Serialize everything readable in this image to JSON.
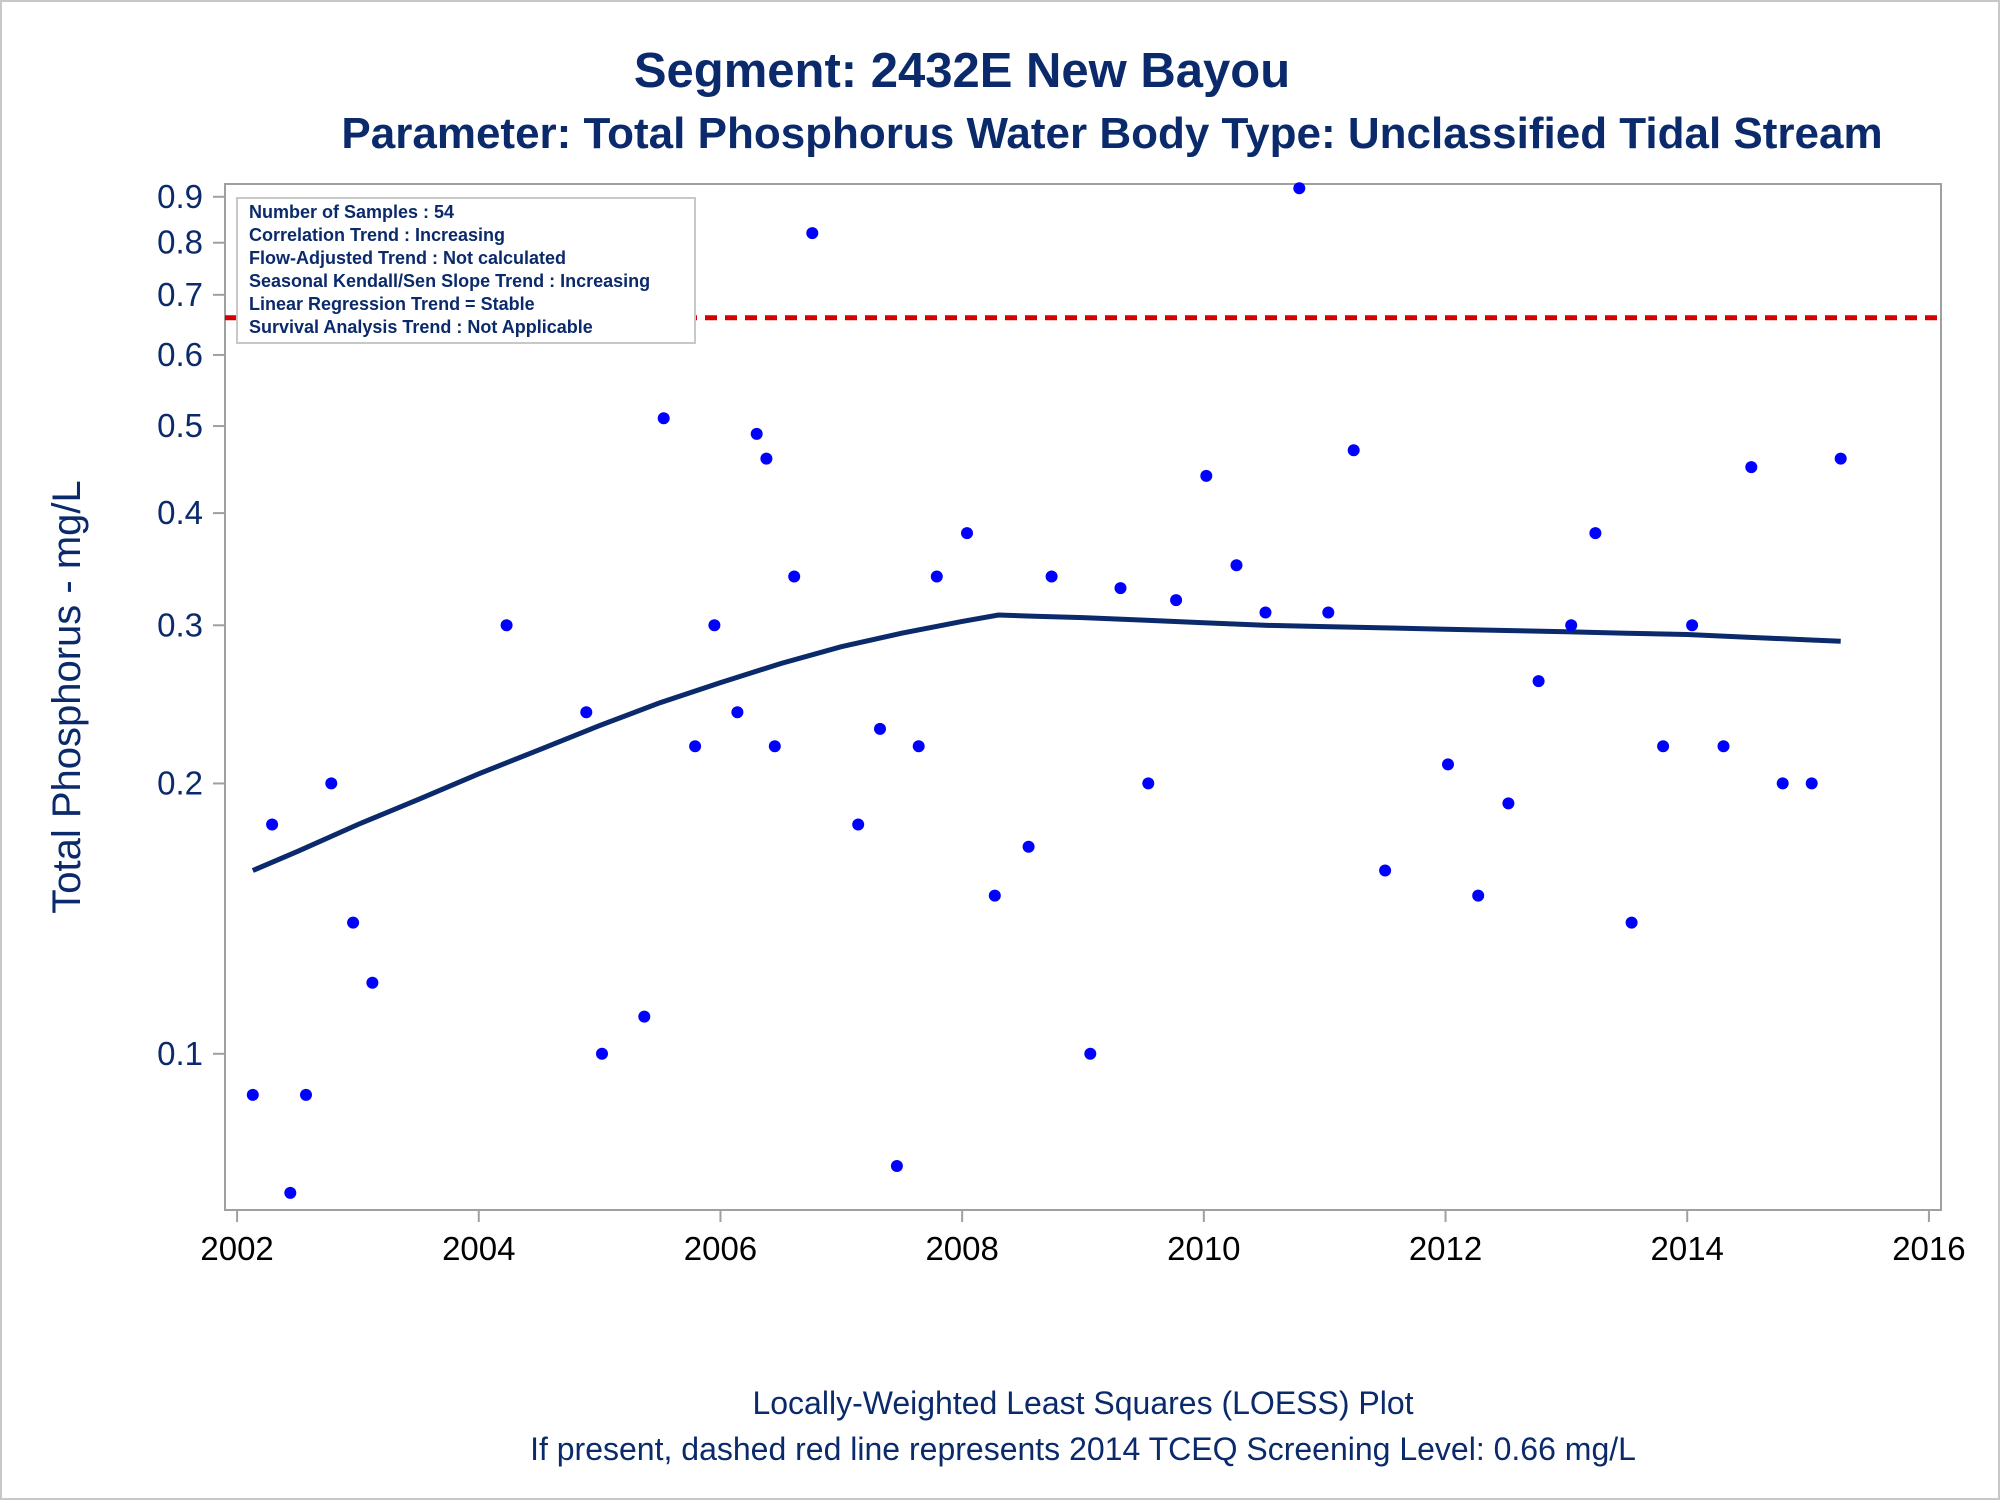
{
  "chart_data": {
    "type": "scatter",
    "title": "Segment: 2432E  New Bayou",
    "subtitle": "Parameter: Total Phosphorus   Water Body Type: Unclassified Tidal Stream",
    "ylabel": "Total Phosphorus - mg/L",
    "xlabel": "",
    "y_scale": "log",
    "ylim": [
      0.067,
      0.93
    ],
    "xlim": [
      2001.9,
      2016.1
    ],
    "x_ticks": [
      2002,
      2004,
      2006,
      2008,
      2010,
      2012,
      2014,
      2016
    ],
    "y_ticks": [
      0.1,
      0.2,
      0.3,
      0.4,
      0.5,
      0.6,
      0.7,
      0.8,
      0.9
    ],
    "grid": false,
    "inset_box": [
      "Number of Samples : 54",
      "Correlation Trend : Increasing",
      "Flow-Adjusted Trend : Not calculated",
      "Seasonal Kendall/Sen Slope Trend : Increasing",
      "Linear Regression Trend = Stable",
      "Survival Analysis Trend : Not Applicable"
    ],
    "screening_level": {
      "value": 0.66,
      "color": "#d40000"
    },
    "footnotes": [
      "Locally-Weighted Least Squares (LOESS) Plot",
      "If present, dashed red line represents 2014 TCEQ Screening Level: 0.66 mg/L"
    ],
    "series": [
      {
        "type": "scatter",
        "color": "#0000ff",
        "points": [
          [
            2002.13,
            0.09
          ],
          [
            2002.29,
            0.18
          ],
          [
            2002.44,
            0.07
          ],
          [
            2002.57,
            0.09
          ],
          [
            2002.78,
            0.2
          ],
          [
            2002.96,
            0.14
          ],
          [
            2003.12,
            0.12
          ],
          [
            2004.23,
            0.3
          ],
          [
            2004.89,
            0.24
          ],
          [
            2005.02,
            0.1
          ],
          [
            2005.37,
            0.11
          ],
          [
            2005.53,
            0.51
          ],
          [
            2005.79,
            0.22
          ],
          [
            2005.95,
            0.3
          ],
          [
            2006.14,
            0.24
          ],
          [
            2006.3,
            0.49
          ],
          [
            2006.38,
            0.46
          ],
          [
            2006.45,
            0.22
          ],
          [
            2006.61,
            0.34
          ],
          [
            2006.76,
            0.82
          ],
          [
            2007.14,
            0.18
          ],
          [
            2007.32,
            0.23
          ],
          [
            2007.46,
            0.075
          ],
          [
            2007.64,
            0.22
          ],
          [
            2007.79,
            0.34
          ],
          [
            2008.04,
            0.38
          ],
          [
            2008.27,
            0.15
          ],
          [
            2008.55,
            0.17
          ],
          [
            2008.74,
            0.34
          ],
          [
            2009.06,
            0.1
          ],
          [
            2009.31,
            0.33
          ],
          [
            2009.54,
            0.2
          ],
          [
            2009.77,
            0.32
          ],
          [
            2010.02,
            0.44
          ],
          [
            2010.27,
            0.35
          ],
          [
            2010.51,
            0.31
          ],
          [
            2010.79,
            0.92
          ],
          [
            2011.03,
            0.31
          ],
          [
            2011.24,
            0.47
          ],
          [
            2011.5,
            0.16
          ],
          [
            2012.02,
            0.21
          ],
          [
            2012.27,
            0.15
          ],
          [
            2012.52,
            0.19
          ],
          [
            2012.77,
            0.26
          ],
          [
            2013.04,
            0.3
          ],
          [
            2013.24,
            0.38
          ],
          [
            2013.54,
            0.14
          ],
          [
            2013.8,
            0.22
          ],
          [
            2014.04,
            0.3
          ],
          [
            2014.3,
            0.22
          ],
          [
            2014.53,
            0.45
          ],
          [
            2014.79,
            0.2
          ],
          [
            2015.03,
            0.2
          ],
          [
            2015.27,
            0.46
          ]
        ]
      },
      {
        "type": "line",
        "color": "#0b2a6b",
        "points": [
          [
            2002.13,
            0.16
          ],
          [
            2002.5,
            0.168
          ],
          [
            2003.0,
            0.18
          ],
          [
            2003.5,
            0.192
          ],
          [
            2004.0,
            0.205
          ],
          [
            2004.5,
            0.218
          ],
          [
            2005.0,
            0.232
          ],
          [
            2005.5,
            0.246
          ],
          [
            2006.0,
            0.259
          ],
          [
            2006.5,
            0.272
          ],
          [
            2007.0,
            0.284
          ],
          [
            2007.5,
            0.294
          ],
          [
            2008.0,
            0.303
          ],
          [
            2008.3,
            0.308
          ],
          [
            2008.6,
            0.307
          ],
          [
            2009.0,
            0.306
          ],
          [
            2009.5,
            0.304
          ],
          [
            2010.0,
            0.302
          ],
          [
            2010.5,
            0.3
          ],
          [
            2011.0,
            0.299
          ],
          [
            2011.5,
            0.298
          ],
          [
            2012.0,
            0.297
          ],
          [
            2012.5,
            0.296
          ],
          [
            2013.0,
            0.295
          ],
          [
            2013.5,
            0.294
          ],
          [
            2014.0,
            0.293
          ],
          [
            2014.5,
            0.291
          ],
          [
            2015.0,
            0.289
          ],
          [
            2015.27,
            0.288
          ]
        ]
      }
    ]
  }
}
